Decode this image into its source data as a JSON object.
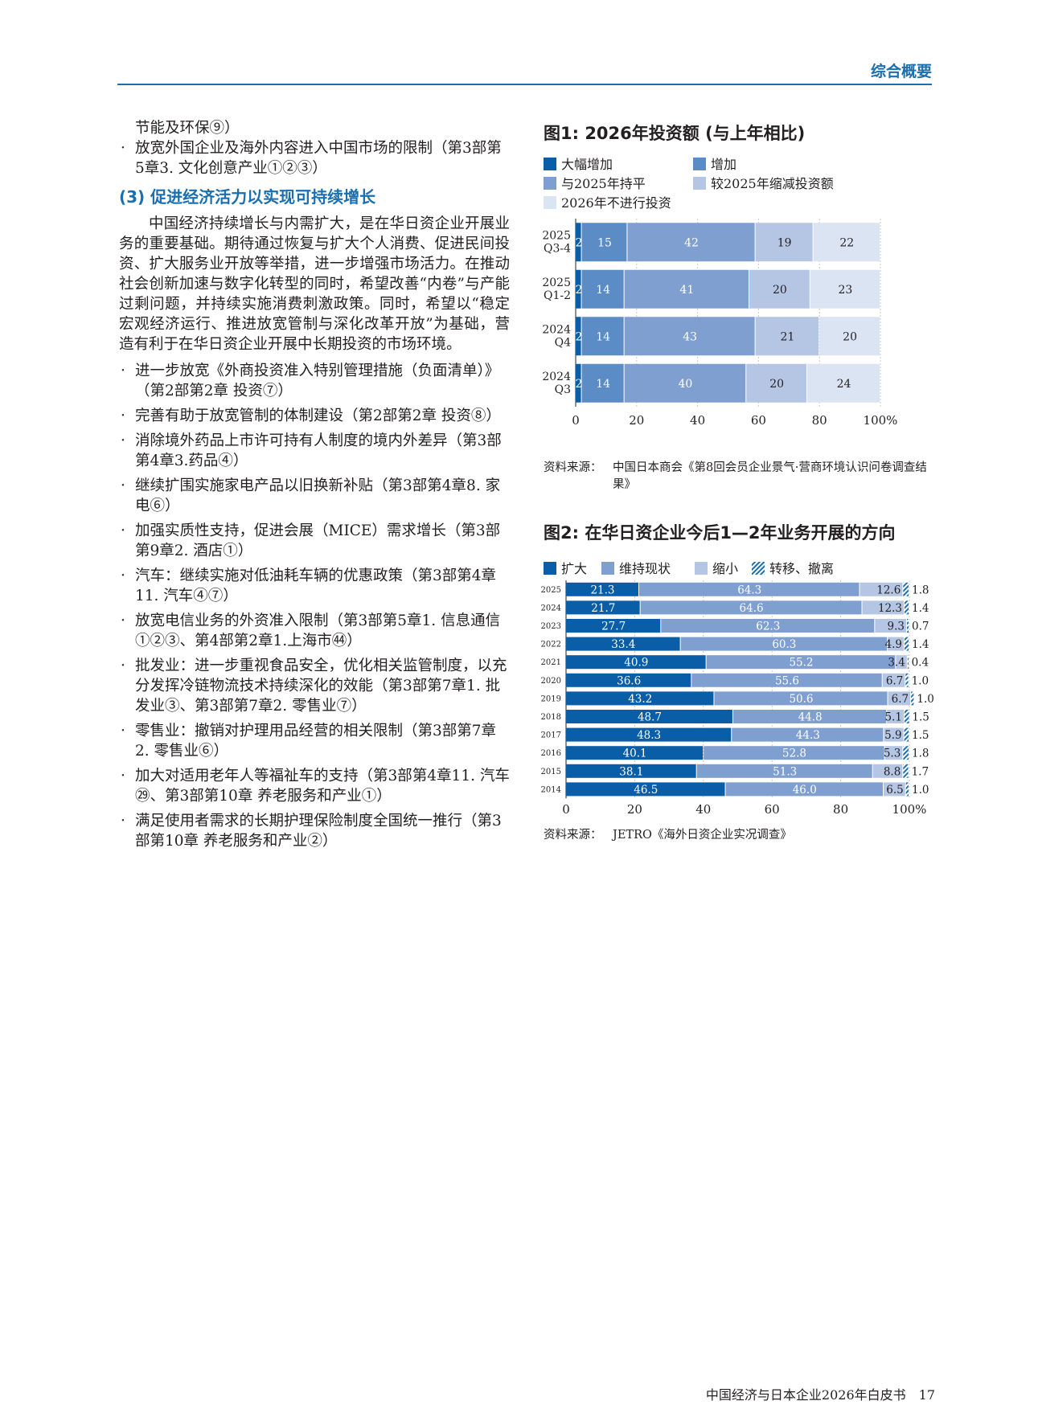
{
  "header": {
    "section": "综合概要"
  },
  "left": {
    "cont1": "节能及环保⑨）",
    "bullets_top": [
      "放宽外国企业及海外内容进入中国市场的限制（第3部第5章3. 文化创意产业①②③）"
    ],
    "section_title": "(3) 促进经济活力以实现可持续增长",
    "paragraph": "中国经济持续增长与内需扩大，是在华日资企业开展业务的重要基础。期待通过恢复与扩大个人消费、促进民间投资、扩大服务业开放等举措，进一步增强市场活力。在推动社会创新加速与数字化转型的同时，希望改善“内卷”与产能过剩问题，并持续实施消费刺激政策。同时，希望以“稳定宏观经济运行、推进放宽管制与深化改革开放”为基础，营造有利于在华日资企业开展中长期投资的市场环境。",
    "bullets": [
      "进一步放宽《外商投资准入特别管理措施（负面清单）》（第2部第2章 投资⑦）",
      "完善有助于放宽管制的体制建设（第2部第2章 投资⑧）",
      "消除境外药品上市许可持有人制度的境内外差异（第3部第4章3.药品④）",
      "继续扩围实施家电产品以旧换新补贴（第3部第4章8. 家电⑥）",
      "加强实质性支持，促进会展（MICE）需求增长（第3部第9章2. 酒店①）",
      "汽车：继续实施对低油耗车辆的优惠政策（第3部第4章11. 汽车④⑦）",
      "放宽电信业务的外资准入限制（第3部第5章1. 信息通信①②③、第4部第2章1.上海市㊹）",
      "批发业：进一步重视食品安全，优化相关监管制度，以充分发挥冷链物流技术持续深化的效能（第3部第7章1. 批发业③、第3部第7章2. 零售业⑦）",
      "零售业：撤销对护理用品经营的相关限制（第3部第7章2. 零售业⑥）",
      "加大对适用老年人等福祉车的支持（第3部第4章11. 汽车㉙、第3部第10章 养老服务和产业①）",
      "满足使用者需求的长期护理保险制度全国统一推行（第3部第10章 养老服务和产业②）"
    ]
  },
  "fig1": {
    "title": "图1:  2026年投资额 (与上年相比)",
    "source_label": "资料来源：",
    "source_text": "中国日本商会《第8回会员企业景气·营商环境认识问卷调查结果》"
  },
  "fig2": {
    "title": "图2:  在华日资企业今后1—2年业务开展的方向",
    "source_label": "资料来源：",
    "source_text": "JETRO《海外日资企业实况调查》"
  },
  "chart_data": [
    {
      "type": "bar",
      "orientation": "horizontal",
      "stacked": true,
      "title": "图1:  2026年投资额 (与上年相比)",
      "categories": [
        "2025 Q3-4",
        "2025 Q1-2",
        "2024 Q4",
        "2024 Q3"
      ],
      "series": [
        {
          "name": "大幅增加",
          "color": "#0a5ea8",
          "values": [
            2,
            2,
            2,
            2
          ]
        },
        {
          "name": "增加",
          "color": "#5b8cc6",
          "values": [
            15,
            14,
            14,
            14
          ]
        },
        {
          "name": "与2025年持平",
          "color": "#7f9fd1",
          "values": [
            42,
            41,
            43,
            40
          ]
        },
        {
          "name": "较2025年缩减投资额",
          "color": "#b4c6e4",
          "values": [
            19,
            20,
            21,
            20
          ]
        },
        {
          "name": "2026年不进行投资",
          "color": "#dbe4f3",
          "values": [
            22,
            23,
            20,
            24
          ]
        }
      ],
      "xlim": [
        0,
        100
      ],
      "xticks": [
        "0",
        "20",
        "40",
        "60",
        "80",
        "100%"
      ],
      "grid": true,
      "legend": "top"
    },
    {
      "type": "bar",
      "orientation": "horizontal",
      "stacked": true,
      "title": "图2:  在华日资企业今后1—2年业务开展的方向",
      "categories": [
        "2025",
        "2024",
        "2023",
        "2022",
        "2021",
        "2020",
        "2019",
        "2018",
        "2017",
        "2016",
        "2015",
        "2014"
      ],
      "series": [
        {
          "name": "扩大",
          "color": "#0a5ea8",
          "values": [
            21.3,
            21.7,
            27.7,
            33.4,
            40.9,
            36.6,
            43.2,
            48.7,
            48.3,
            40.1,
            38.1,
            46.5
          ]
        },
        {
          "name": "维持现状",
          "color": "#7f9fd1",
          "values": [
            64.3,
            64.6,
            62.3,
            60.3,
            55.2,
            55.6,
            50.6,
            44.8,
            44.3,
            52.8,
            51.3,
            46.0
          ]
        },
        {
          "name": "缩小",
          "color": "#b4c6e4",
          "values": [
            12.6,
            12.3,
            9.3,
            4.9,
            3.4,
            6.7,
            6.7,
            5.1,
            5.9,
            5.3,
            8.8,
            6.5
          ]
        },
        {
          "name": "转移、撤离",
          "color": "#1a6fb0",
          "pattern": "hatch",
          "values": [
            1.8,
            1.4,
            0.7,
            1.4,
            0.4,
            1.0,
            1.0,
            1.5,
            1.5,
            1.8,
            1.7,
            1.0
          ]
        }
      ],
      "labels": {
        "s0": [
          "21.3",
          "21.7",
          "27.7",
          "33.4",
          "40.9",
          "36.6",
          "43.2",
          "48.7",
          "48.3",
          "40.1",
          "38.1",
          "46.5"
        ],
        "s1": [
          "64.3",
          "64.6",
          "62.3",
          "60.3",
          "55.2",
          "55.6",
          "50.6",
          "44.8",
          "44.3",
          "52.8",
          "51.3",
          "46.0"
        ],
        "s2": [
          "12.6",
          "12.3",
          "9.3",
          "4.9",
          "3.4",
          "6.7",
          "6.7",
          "5.1",
          "5.9",
          "5.3",
          "8.8",
          "6.5"
        ],
        "s3": [
          "1.8",
          "1.4",
          "0.7",
          "1.4",
          "0.4",
          "1.0",
          "1.0",
          "1.5",
          "1.5",
          "1.8",
          "1.7",
          "1.0"
        ]
      },
      "xlim": [
        0,
        100
      ],
      "xticks": [
        "0",
        "20",
        "40",
        "60",
        "80",
        "100%"
      ],
      "grid": true,
      "legend": "top"
    }
  ],
  "footer": {
    "title": "中国经济与日本企业2026年白皮书",
    "page": "17"
  }
}
